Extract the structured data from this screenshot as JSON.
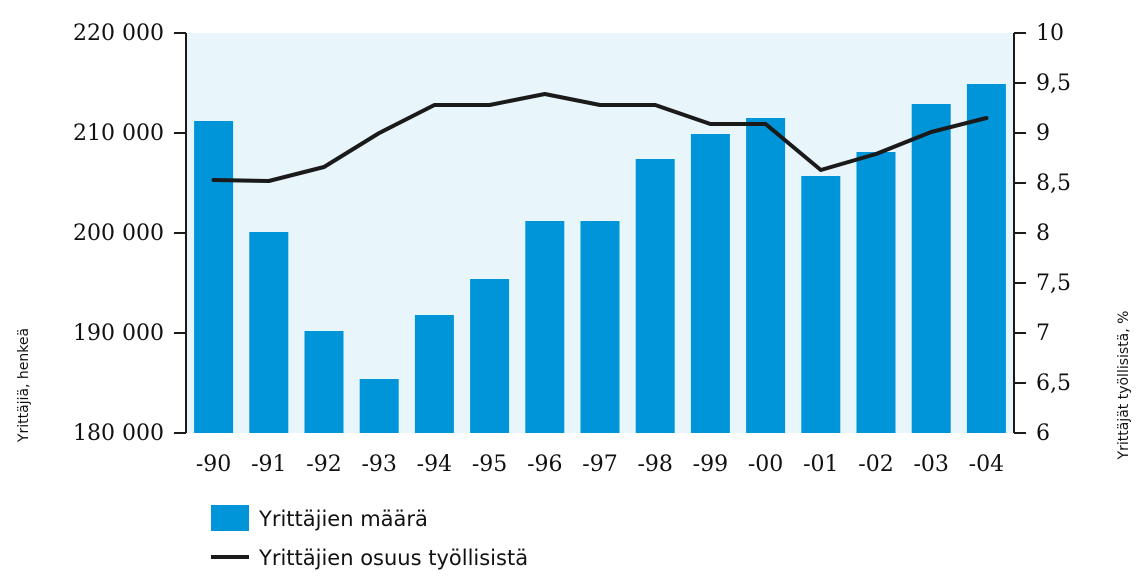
{
  "chart_data": {
    "type": "bar",
    "categories": [
      "-90",
      "-91",
      "-92",
      "-93",
      "-94",
      "-95",
      "-96",
      "-97",
      "-98",
      "-99",
      "-00",
      "-01",
      "-02",
      "-03",
      "-04"
    ],
    "series": [
      {
        "name": "Yrittäjien määrä",
        "type": "bar",
        "axis": "left",
        "color": "#0095d9",
        "values": [
          211200,
          200100,
          190200,
          185400,
          191800,
          195400,
          201200,
          201200,
          207400,
          209900,
          211500,
          205700,
          208100,
          212900,
          214900
        ]
      },
      {
        "name": "Yrittäjien osuus työllisistä",
        "type": "line",
        "axis": "right",
        "color": "#1a1a1a",
        "values": [
          8.53,
          8.52,
          8.66,
          9.0,
          9.28,
          9.28,
          9.39,
          9.28,
          9.28,
          9.09,
          9.09,
          8.63,
          8.79,
          9.01,
          9.15
        ]
      }
    ],
    "ylabel": "Yrittäjiä, henkeä",
    "y2label": "Yrittäjät työllisistä, %",
    "ylim": [
      180000,
      220000
    ],
    "y2lim": [
      6,
      10
    ],
    "yticks": [
      180000,
      190000,
      200000,
      210000,
      220000
    ],
    "ytick_labels": [
      "180 000",
      "190 000",
      "200 000",
      "210 000",
      "220 000"
    ],
    "y2ticks": [
      6,
      6.5,
      7,
      7.5,
      8,
      8.5,
      9,
      9.5,
      10
    ],
    "y2tick_labels": [
      "6",
      "6,5",
      "7",
      "7,5",
      "8",
      "8,5",
      "9",
      "9,5",
      "10"
    ],
    "grid": false,
    "legend_position": "bottom-left",
    "plot_background": "#e8f5fb"
  }
}
